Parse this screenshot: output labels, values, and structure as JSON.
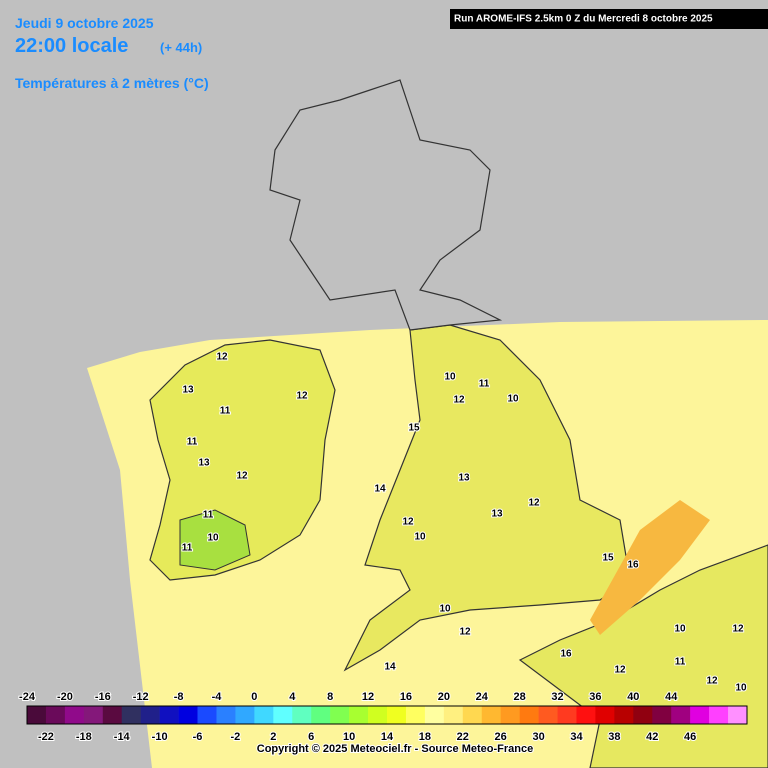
{
  "header": {
    "date": "Jeudi 9 octobre 2025",
    "time": "22:00 locale",
    "lead": "(+ 44h)",
    "parameter": "Températures à 2 mètres (°C)"
  },
  "run": "Run AROME-IFS 2.5km 0 Z du Mercredi 8 octobre 2025",
  "colorbar": {
    "top_labels": [
      -24,
      -20,
      -16,
      -12,
      -8,
      -4,
      0,
      4,
      8,
      12,
      16,
      20,
      24,
      28,
      32,
      36,
      40,
      44
    ],
    "bottom_labels": [
      -22,
      -18,
      -14,
      -10,
      -6,
      -2,
      2,
      6,
      10,
      14,
      18,
      22,
      26,
      30,
      34,
      38,
      42,
      46
    ],
    "colors": [
      "#4a0a3a",
      "#6a0a5a",
      "#900a8a",
      "#84187a",
      "#5a0a40",
      "#303060",
      "#20208a",
      "#1010c0",
      "#0000e0",
      "#1a4aff",
      "#2a80ff",
      "#30a8ff",
      "#40d8ff",
      "#60ffff",
      "#60ffc0",
      "#60ff80",
      "#80ff50",
      "#a8ff30",
      "#d0ff20",
      "#f0ff20",
      "#ffff60",
      "#ffffa0",
      "#fff080",
      "#ffd850",
      "#ffb830",
      "#ff9a20",
      "#ff7a10",
      "#ff5a20",
      "#ff3a20",
      "#ff1010",
      "#e00000",
      "#b80000",
      "#900010",
      "#800040",
      "#a00080",
      "#e000e0",
      "#ff40ff",
      "#ff90ff"
    ]
  },
  "map_labels": [
    12,
    13,
    11,
    12,
    11,
    13,
    12,
    11,
    10,
    11,
    15,
    14,
    12,
    10,
    10,
    11,
    12,
    10,
    13,
    13,
    12,
    15,
    16,
    10,
    12,
    14,
    16,
    10,
    12,
    11,
    12,
    10,
    12
  ],
  "copyright": "Copyright © 2025 Meteociel.fr - Source Meteo-France"
}
